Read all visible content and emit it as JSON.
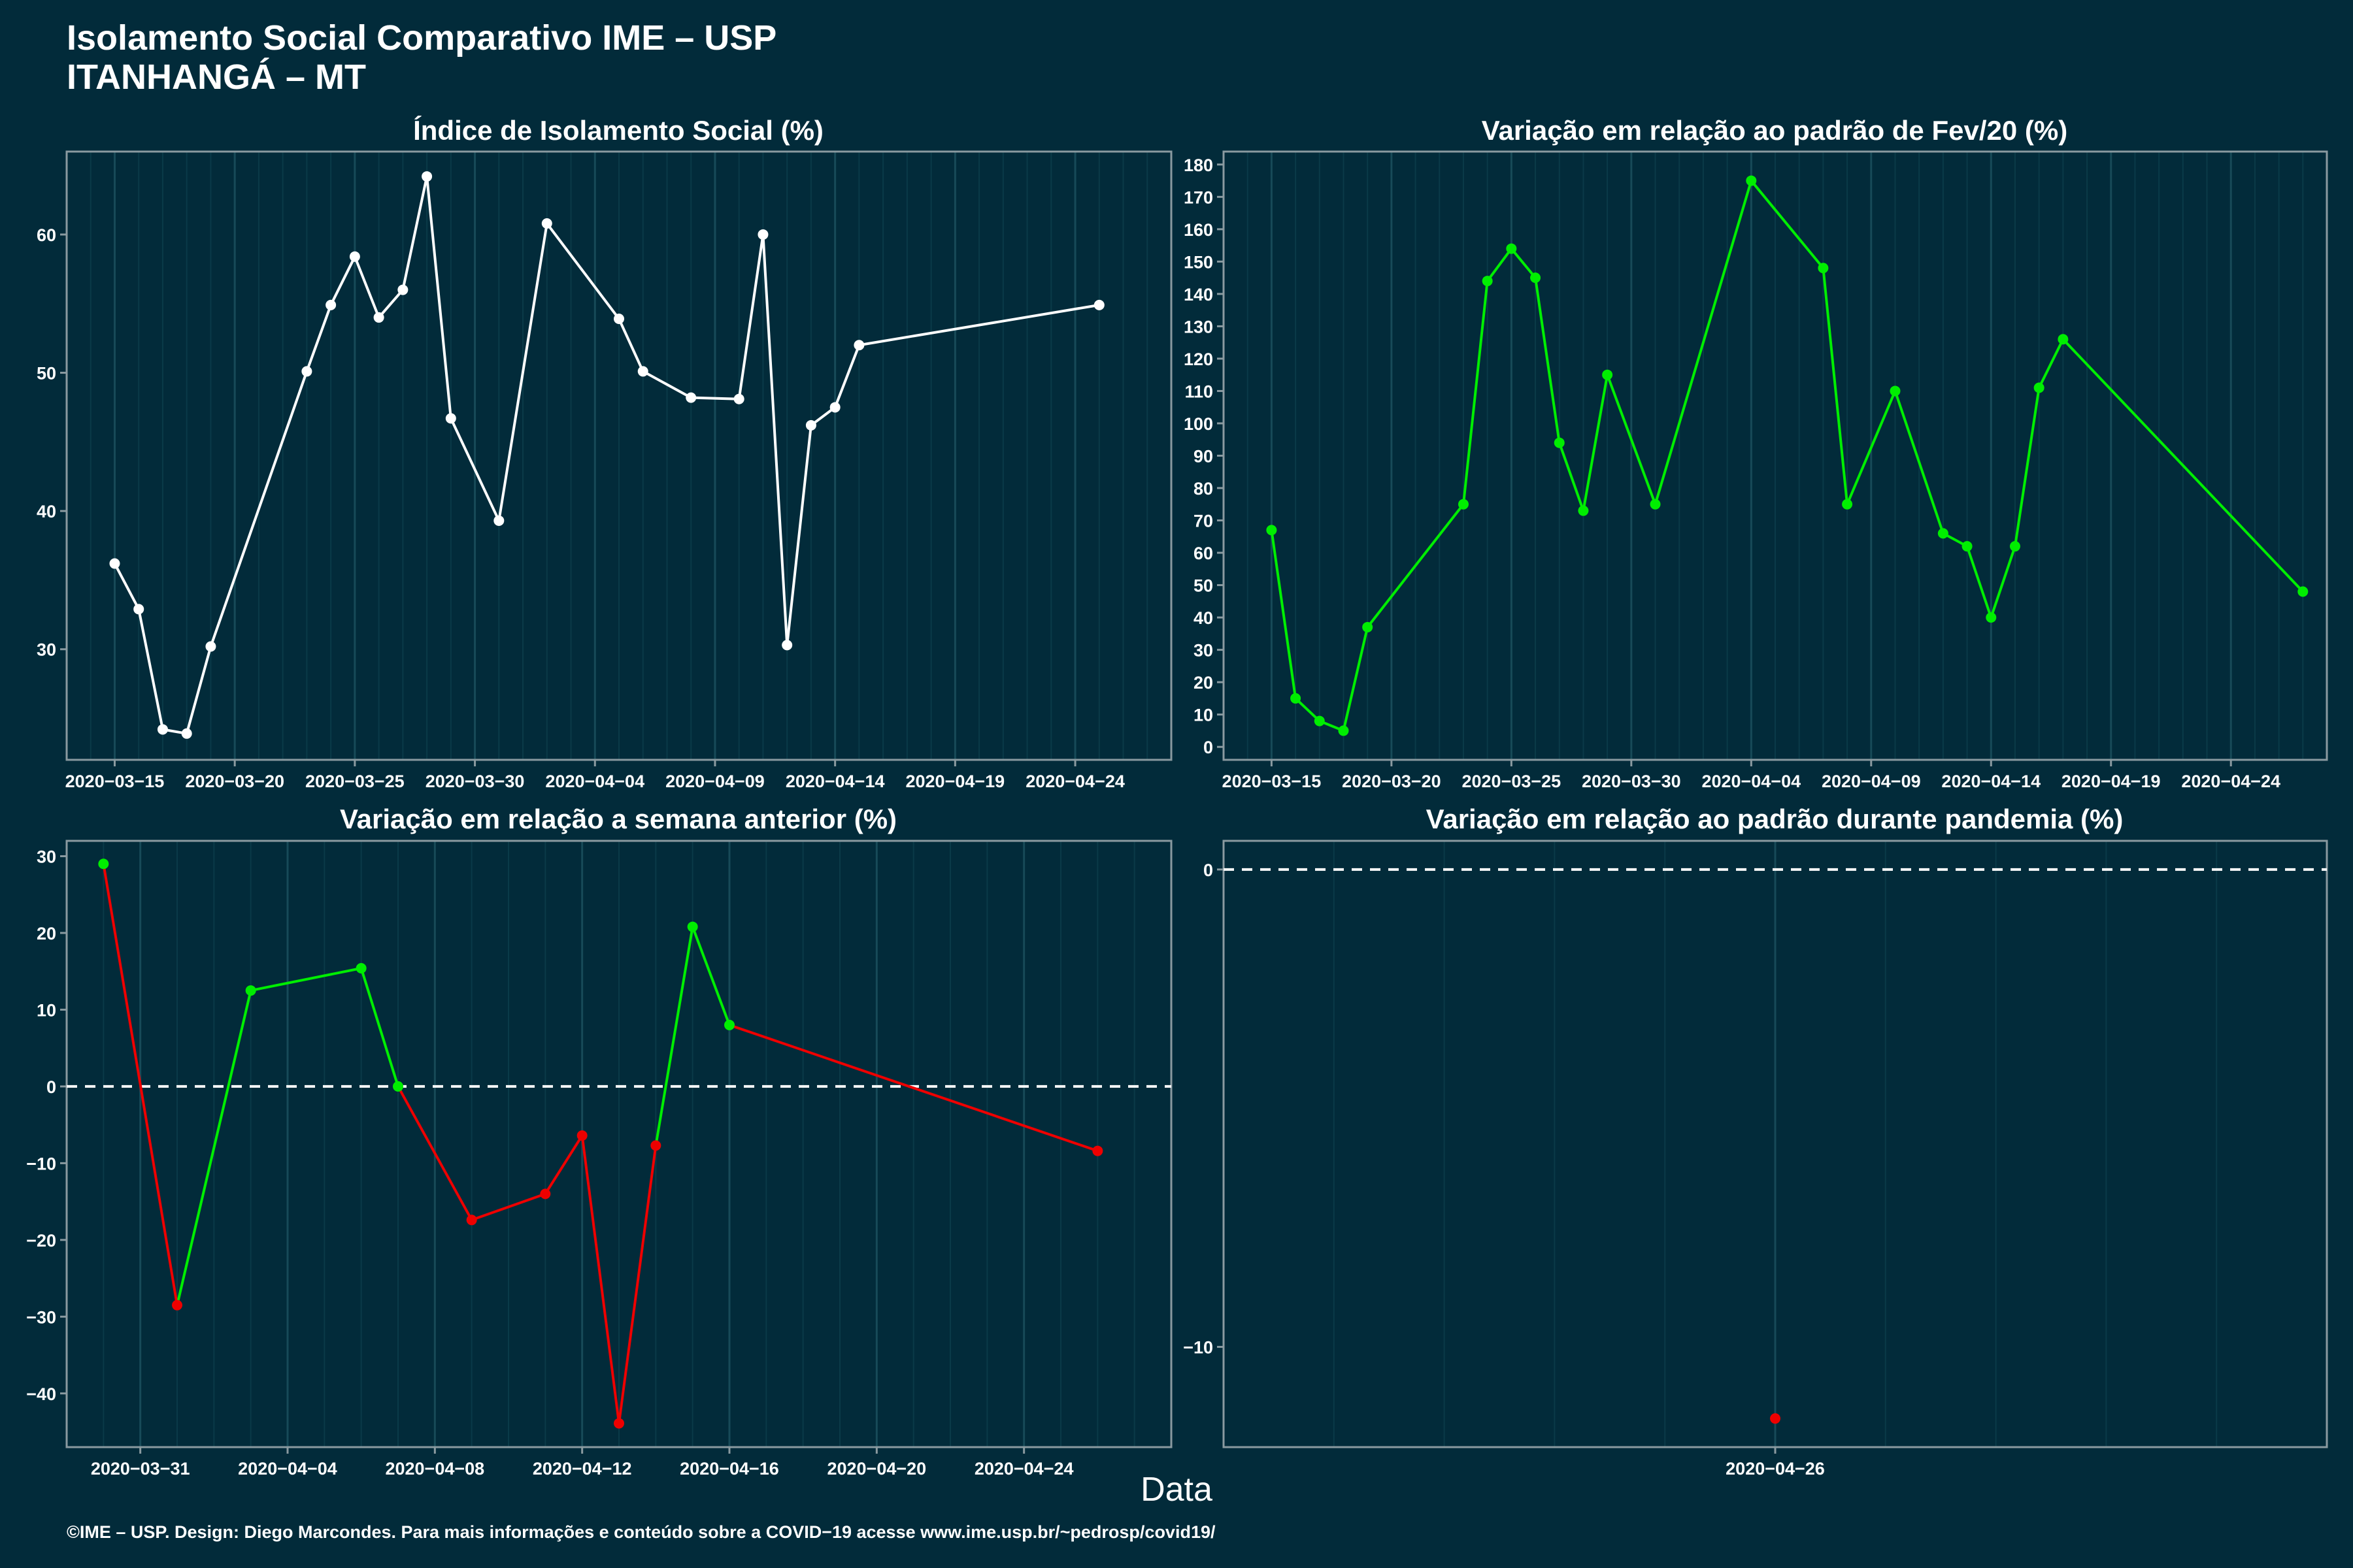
{
  "header": {
    "title_line1": "Isolamento Social Comparativo IME – USP",
    "title_line2": "ITANHANGÁ – MT"
  },
  "x_axis_title": "Data",
  "footer": "©IME – USP. Design: Diego Marcondes. Para mais informações e conteúdo sobre a COVID−19 acesse www.ime.usp.br/~pedrosp/covid19/",
  "colors": {
    "background": "#022b3a",
    "line": "#ffffff",
    "increase": "#00ee00",
    "decrease": "#ee0000",
    "neutral": "#ffffff"
  },
  "chart_data": [
    {
      "id": "isolation",
      "type": "line",
      "title": "Índice de Isolamento Social (%)",
      "xlabel": "Data",
      "ylabel": "",
      "xlim": [
        "2020-03-13",
        "2020-04-28"
      ],
      "ylim": [
        22,
        66
      ],
      "xticks": [
        "2020-03-15",
        "2020-03-20",
        "2020-03-25",
        "2020-03-30",
        "2020-04-04",
        "2020-04-09",
        "2020-04-14",
        "2020-04-19",
        "2020-04-24"
      ],
      "yticks": [
        30,
        40,
        50,
        60
      ],
      "points": [
        {
          "x": "2020-03-15",
          "y": 36.2,
          "c": "white"
        },
        {
          "x": "2020-03-16",
          "y": 32.9,
          "c": "white"
        },
        {
          "x": "2020-03-17",
          "y": 24.2,
          "c": "white"
        },
        {
          "x": "2020-03-18",
          "y": 23.9,
          "c": "white"
        },
        {
          "x": "2020-03-19",
          "y": 30.2,
          "c": "white"
        },
        {
          "x": "2020-03-23",
          "y": 50.1,
          "c": "white"
        },
        {
          "x": "2020-03-24",
          "y": 54.9,
          "c": "white"
        },
        {
          "x": "2020-03-25",
          "y": 58.4,
          "c": "white"
        },
        {
          "x": "2020-03-26",
          "y": 54.0,
          "c": "white"
        },
        {
          "x": "2020-03-27",
          "y": 56.0,
          "c": "white"
        },
        {
          "x": "2020-03-28",
          "y": 64.2,
          "c": "white"
        },
        {
          "x": "2020-03-29",
          "y": 46.7,
          "c": "white"
        },
        {
          "x": "2020-03-31",
          "y": 39.3,
          "c": "white"
        },
        {
          "x": "2020-04-02",
          "y": 60.8,
          "c": "white"
        },
        {
          "x": "2020-04-05",
          "y": 53.9,
          "c": "white"
        },
        {
          "x": "2020-04-06",
          "y": 50.1,
          "c": "white"
        },
        {
          "x": "2020-04-08",
          "y": 48.2,
          "c": "white"
        },
        {
          "x": "2020-04-10",
          "y": 48.1,
          "c": "white"
        },
        {
          "x": "2020-04-11",
          "y": 60.0,
          "c": "white"
        },
        {
          "x": "2020-04-12",
          "y": 30.3,
          "c": "white"
        },
        {
          "x": "2020-04-13",
          "y": 46.2,
          "c": "white"
        },
        {
          "x": "2020-04-14",
          "y": 47.5,
          "c": "white"
        },
        {
          "x": "2020-04-15",
          "y": 52.0,
          "c": "white"
        },
        {
          "x": "2020-04-25",
          "y": 54.9,
          "c": "white"
        }
      ]
    },
    {
      "id": "feb_variation",
      "type": "line",
      "title": "Variação em relação ao padrão de Fev/20 (%)",
      "xlabel": "Data",
      "ylabel": "",
      "xlim": [
        "2020-03-13",
        "2020-04-28"
      ],
      "ylim": [
        -4,
        184
      ],
      "xticks": [
        "2020-03-15",
        "2020-03-20",
        "2020-03-25",
        "2020-03-30",
        "2020-04-04",
        "2020-04-09",
        "2020-04-14",
        "2020-04-19",
        "2020-04-24"
      ],
      "yticks": [
        0,
        10,
        20,
        30,
        40,
        50,
        60,
        70,
        80,
        90,
        100,
        110,
        120,
        130,
        140,
        150,
        160,
        170,
        180
      ],
      "points": [
        {
          "x": "2020-03-15",
          "y": 67,
          "c": "green"
        },
        {
          "x": "2020-03-16",
          "y": 15,
          "c": "green"
        },
        {
          "x": "2020-03-17",
          "y": 8,
          "c": "green"
        },
        {
          "x": "2020-03-18",
          "y": 5,
          "c": "green"
        },
        {
          "x": "2020-03-19",
          "y": 37,
          "c": "green"
        },
        {
          "x": "2020-03-23",
          "y": 75,
          "c": "green"
        },
        {
          "x": "2020-03-24",
          "y": 144,
          "c": "green"
        },
        {
          "x": "2020-03-25",
          "y": 154,
          "c": "green"
        },
        {
          "x": "2020-03-26",
          "y": 145,
          "c": "green"
        },
        {
          "x": "2020-03-27",
          "y": 94,
          "c": "green"
        },
        {
          "x": "2020-03-28",
          "y": 73,
          "c": "green"
        },
        {
          "x": "2020-03-29",
          "y": 115,
          "c": "green"
        },
        {
          "x": "2020-03-31",
          "y": 75,
          "c": "green"
        },
        {
          "x": "2020-04-04",
          "y": 175,
          "c": "green"
        },
        {
          "x": "2020-04-07",
          "y": 148,
          "c": "green"
        },
        {
          "x": "2020-04-08",
          "y": 75,
          "c": "green"
        },
        {
          "x": "2020-04-10",
          "y": 110,
          "c": "green"
        },
        {
          "x": "2020-04-12",
          "y": 66,
          "c": "green"
        },
        {
          "x": "2020-04-13",
          "y": 62,
          "c": "green"
        },
        {
          "x": "2020-04-14",
          "y": 40,
          "c": "green"
        },
        {
          "x": "2020-04-15",
          "y": 62,
          "c": "green"
        },
        {
          "x": "2020-04-16",
          "y": 111,
          "c": "green"
        },
        {
          "x": "2020-04-17",
          "y": 126,
          "c": "green"
        },
        {
          "x": "2020-04-27",
          "y": 48,
          "c": "green"
        }
      ]
    },
    {
      "id": "week_variation",
      "type": "line",
      "title": "Variação em relação a semana anterior (%)",
      "xlabel": "Data",
      "ylabel": "",
      "xlim": [
        "2020-03-29",
        "2020-04-28"
      ],
      "ylim": [
        -47,
        32
      ],
      "xticks": [
        "2020-03-31",
        "2020-04-04",
        "2020-04-08",
        "2020-04-12",
        "2020-04-16",
        "2020-04-20",
        "2020-04-24"
      ],
      "yticks": [
        -40,
        -30,
        -20,
        -10,
        0,
        10,
        20,
        30
      ],
      "reference_line": 0,
      "points": [
        {
          "x": "2020-03-30",
          "y": 29.0,
          "c": "green"
        },
        {
          "x": "2020-04-01",
          "y": -28.5,
          "c": "red"
        },
        {
          "x": "2020-04-03",
          "y": 12.5,
          "c": "green"
        },
        {
          "x": "2020-04-06",
          "y": 15.4,
          "c": "green"
        },
        {
          "x": "2020-04-07",
          "y": 0.0,
          "c": "green"
        },
        {
          "x": "2020-04-09",
          "y": -17.4,
          "c": "red"
        },
        {
          "x": "2020-04-11",
          "y": -14.0,
          "c": "red"
        },
        {
          "x": "2020-04-12",
          "y": -6.4,
          "c": "red"
        },
        {
          "x": "2020-04-13",
          "y": -43.9,
          "c": "red"
        },
        {
          "x": "2020-04-14",
          "y": -7.7,
          "c": "red"
        },
        {
          "x": "2020-04-15",
          "y": 20.8,
          "c": "green"
        },
        {
          "x": "2020-04-16",
          "y": 8.0,
          "c": "green"
        },
        {
          "x": "2020-04-26",
          "y": -8.4,
          "c": "red"
        }
      ]
    },
    {
      "id": "pandemic_variation",
      "type": "scatter",
      "title": "Variação em relação ao padrão durante pandemia (%)",
      "xlabel": "Data",
      "ylabel": "",
      "xlim": [
        "2020-04-21",
        "2020-05-01"
      ],
      "ylim": [
        -12.1,
        0.6
      ],
      "xticks": [
        "2020-04-26"
      ],
      "yticks": [
        -10,
        0
      ],
      "reference_line": 0,
      "points": [
        {
          "x": "2020-04-26",
          "y": -11.5,
          "c": "red"
        }
      ]
    }
  ]
}
